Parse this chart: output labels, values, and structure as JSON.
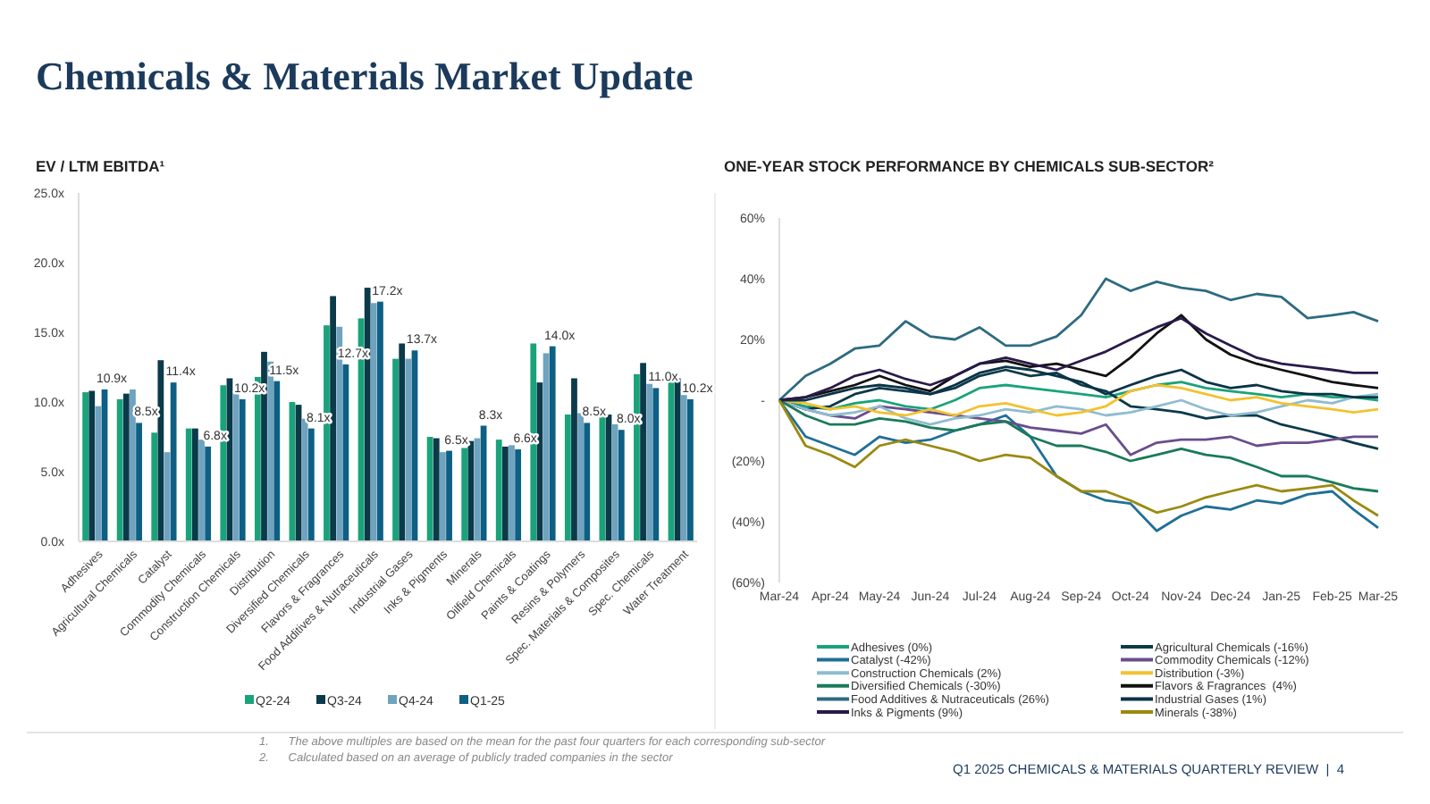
{
  "chart_data": [
    {
      "type": "bar",
      "title": "Chemicals & Materials Market Update",
      "subtitle": "EV / LTM EBITDA¹",
      "categories": [
        "Adhesives",
        "Agricultural Chemicals",
        "Catalyst",
        "Commodity Chemicals",
        "Construction Chemicals",
        "Distribution",
        "Diversified Chemicals",
        "Flavors & Fragrances",
        "Food Additives & Nutraceuticals",
        "Industrial Gases",
        "Inks & Pigments",
        "Minerals",
        "Oilfield Chemicals",
        "Paints & Coatings",
        "Resins & Polymers",
        "Spec. Materials & Composites",
        "Spec. Chemicals",
        "Water Treatment"
      ],
      "series": [
        {
          "name": "Q2-24",
          "color": "#1aa37a",
          "values": [
            10.7,
            10.2,
            7.8,
            8.1,
            11.2,
            11.8,
            10.0,
            15.5,
            16.0,
            13.1,
            7.5,
            6.7,
            7.3,
            14.2,
            9.1,
            9.4,
            12.0,
            11.7
          ]
        },
        {
          "name": "Q3-24",
          "color": "#0b3a4a",
          "values": [
            10.8,
            10.6,
            13.0,
            8.1,
            11.7,
            13.6,
            9.8,
            17.6,
            18.2,
            14.2,
            7.4,
            7.2,
            6.8,
            11.4,
            11.7,
            9.1,
            12.8,
            11.7
          ]
        },
        {
          "name": "Q4-24",
          "color": "#6fa3bf",
          "values": [
            9.7,
            10.9,
            6.4,
            7.3,
            10.7,
            12.9,
            8.8,
            15.4,
            17.1,
            13.1,
            6.4,
            7.4,
            6.9,
            13.5,
            9.2,
            8.4,
            11.3,
            10.5
          ]
        },
        {
          "name": "Q1-25",
          "color": "#0e5f84",
          "values": [
            10.9,
            8.5,
            11.4,
            6.8,
            10.2,
            11.5,
            8.1,
            12.7,
            17.2,
            13.7,
            6.5,
            8.3,
            6.6,
            14.0,
            8.5,
            8.0,
            11.0,
            10.2
          ],
          "value_labels": [
            "10.9x",
            "8.5x",
            "11.4x",
            "6.8x",
            "10.2x",
            "11.5x",
            "8.1x",
            "12.7x",
            "17.2x",
            "13.7x",
            "6.5x",
            "8.3x",
            "6.6x",
            "14.0x",
            "8.5x",
            "8.0x",
            "11.0x",
            "10.2x"
          ]
        }
      ],
      "ylim": [
        0,
        25
      ],
      "yticks": [
        {
          "value": 0,
          "label": "0.0x"
        },
        {
          "value": 5,
          "label": "5.0x"
        },
        {
          "value": 10,
          "label": "10.0x"
        },
        {
          "value": 15,
          "label": "15.0x"
        },
        {
          "value": 20,
          "label": "20.0x"
        },
        {
          "value": 25,
          "label": "25.0x"
        }
      ],
      "legend": "bottom",
      "annotations": [
        "1.      The above multiples are based on the mean for the past four quarters for each corresponding sub-sector",
        "2.      Calculated based on an average of publicly traded companies in the sector"
      ]
    },
    {
      "type": "line",
      "title": "ONE-YEAR STOCK PERFORMANCE BY CHEMICALS SUB-SECTOR²",
      "x": [
        "2024-03-28",
        "2024-04-13",
        "2024-04-28",
        "2024-05-13",
        "2024-05-28",
        "2024-06-13",
        "2024-06-28",
        "2024-07-13",
        "2024-07-28",
        "2024-08-13",
        "2024-08-28",
        "2024-09-13",
        "2024-09-28",
        "2024-10-13",
        "2024-10-28",
        "2024-11-13",
        "2024-11-28",
        "2024-12-13",
        "2024-12-28",
        "2025-01-13",
        "2025-01-28",
        "2025-02-13",
        "2025-02-28",
        "2025-03-13",
        "2025-03-28"
      ],
      "series": [
        {
          "name": "Adhesives (0%)",
          "color": "#1aa37a",
          "values": [
            0,
            -2,
            -3,
            -1,
            0,
            -2,
            -3,
            0,
            4,
            5,
            4,
            3,
            2,
            1,
            3,
            5,
            6,
            4,
            3,
            2,
            1,
            2,
            1,
            1,
            0
          ]
        },
        {
          "name": "Agricultural Chemicals (-16%)",
          "color": "#0b3a4a",
          "values": [
            0,
            -3,
            -2,
            2,
            4,
            3,
            2,
            4,
            8,
            10,
            8,
            9,
            5,
            3,
            -2,
            -3,
            -4,
            -6,
            -5,
            -5,
            -8,
            -10,
            -12,
            -14,
            -16
          ]
        },
        {
          "name": "Catalyst (-42%)",
          "color": "#1f6f96",
          "values": [
            0,
            -12,
            -15,
            -18,
            -12,
            -14,
            -13,
            -10,
            -8,
            -5,
            -12,
            -25,
            -30,
            -33,
            -34,
            -43,
            -38,
            -35,
            -36,
            -33,
            -34,
            -31,
            -30,
            -36,
            -42
          ]
        },
        {
          "name": "Commodity Chemicals (-12%)",
          "color": "#6a4d8c",
          "values": [
            0,
            -3,
            -5,
            -6,
            -2,
            -3,
            -4,
            -5,
            -6,
            -7,
            -9,
            -10,
            -11,
            -8,
            -18,
            -14,
            -13,
            -13,
            -12,
            -15,
            -14,
            -14,
            -13,
            -12,
            -12
          ]
        },
        {
          "name": "Construction Chemicals (2%)",
          "color": "#8fbcd0",
          "values": [
            0,
            -3,
            -5,
            -4,
            -2,
            -6,
            -8,
            -6,
            -5,
            -3,
            -4,
            -2,
            -3,
            -5,
            -4,
            -2,
            0,
            -3,
            -5,
            -4,
            -2,
            0,
            -1,
            1,
            2
          ]
        },
        {
          "name": "Distribution (-3%)",
          "color": "#f2c230",
          "values": [
            0,
            -1,
            -3,
            -2,
            -4,
            -5,
            -3,
            -5,
            -2,
            -1,
            -3,
            -5,
            -4,
            -2,
            3,
            5,
            4,
            2,
            0,
            1,
            -1,
            -2,
            -3,
            -4,
            -3
          ]
        },
        {
          "name": "Diversified Chemicals (-30%)",
          "color": "#1a7a5a",
          "values": [
            0,
            -5,
            -8,
            -8,
            -6,
            -7,
            -9,
            -10,
            -8,
            -7,
            -12,
            -15,
            -15,
            -17,
            -20,
            -18,
            -16,
            -18,
            -19,
            -22,
            -25,
            -25,
            -27,
            -29,
            -30
          ]
        },
        {
          "name": "Flavors & Fragrances  (4%)",
          "color": "#111111",
          "values": [
            0,
            1,
            3,
            5,
            8,
            5,
            3,
            8,
            12,
            13,
            11,
            12,
            10,
            8,
            14,
            22,
            28,
            20,
            15,
            12,
            10,
            8,
            6,
            5,
            4
          ]
        },
        {
          "name": "Food Additives & Nutraceuticals (26%)",
          "color": "#2e6b80",
          "values": [
            0,
            8,
            12,
            17,
            18,
            26,
            21,
            20,
            24,
            18,
            18,
            21,
            28,
            40,
            36,
            39,
            37,
            36,
            33,
            35,
            34,
            27,
            28,
            29,
            26
          ]
        },
        {
          "name": "Industrial Gases (1%)",
          "color": "#0a3346",
          "values": [
            0,
            0,
            2,
            4,
            5,
            4,
            2,
            5,
            9,
            11,
            10,
            8,
            6,
            2,
            5,
            8,
            10,
            6,
            4,
            5,
            3,
            2,
            2,
            1,
            1
          ]
        },
        {
          "name": "Inks & Pigments (9%)",
          "color": "#2a1a4a",
          "values": [
            0,
            1,
            4,
            8,
            10,
            7,
            5,
            8,
            12,
            14,
            12,
            10,
            13,
            16,
            20,
            24,
            27,
            22,
            18,
            14,
            12,
            11,
            10,
            9,
            9
          ]
        },
        {
          "name": "Minerals (-38%)",
          "color": "#9a8a10",
          "values": [
            0,
            -15,
            -18,
            -22,
            -15,
            -13,
            -15,
            -17,
            -20,
            -18,
            -19,
            -25,
            -30,
            -30,
            -33,
            -37,
            -35,
            -32,
            -30,
            -28,
            -30,
            -29,
            -28,
            -33,
            -38
          ]
        }
      ],
      "xlim": [
        "2024-03-28",
        "2025-03-28"
      ],
      "xticks": [
        {
          "value": "2024-03-28",
          "label": "Mar-24"
        },
        {
          "value": "2024-04-28",
          "label": "Apr-24"
        },
        {
          "value": "2024-05-28",
          "label": "May-24"
        },
        {
          "value": "2024-06-28",
          "label": "Jun-24"
        },
        {
          "value": "2024-07-28",
          "label": "Jul-24"
        },
        {
          "value": "2024-08-28",
          "label": "Aug-24"
        },
        {
          "value": "2024-09-28",
          "label": "Sep-24"
        },
        {
          "value": "2024-10-28",
          "label": "Oct-24"
        },
        {
          "value": "2024-11-28",
          "label": "Nov-24"
        },
        {
          "value": "2024-12-28",
          "label": "Dec-24"
        },
        {
          "value": "2025-01-28",
          "label": "Jan-25"
        },
        {
          "value": "2025-02-28",
          "label": "Feb-25"
        },
        {
          "value": "2025-03-28",
          "label": "Mar-25"
        }
      ],
      "ylim": [
        -60,
        60
      ],
      "yticks": [
        {
          "value": -60,
          "label": "(60%)"
        },
        {
          "value": -40,
          "label": "(40%)"
        },
        {
          "value": -20,
          "label": "(20%)"
        },
        {
          "value": 0,
          "label": "-"
        },
        {
          "value": 20,
          "label": "20%"
        },
        {
          "value": 40,
          "label": "40%"
        },
        {
          "value": 60,
          "label": "60%"
        }
      ],
      "legend": "bottom",
      "annotations": [
        "Q1 2025 CHEMICALS & MATERIALS QUARTERLY REVIEW  |  4"
      ]
    }
  ]
}
